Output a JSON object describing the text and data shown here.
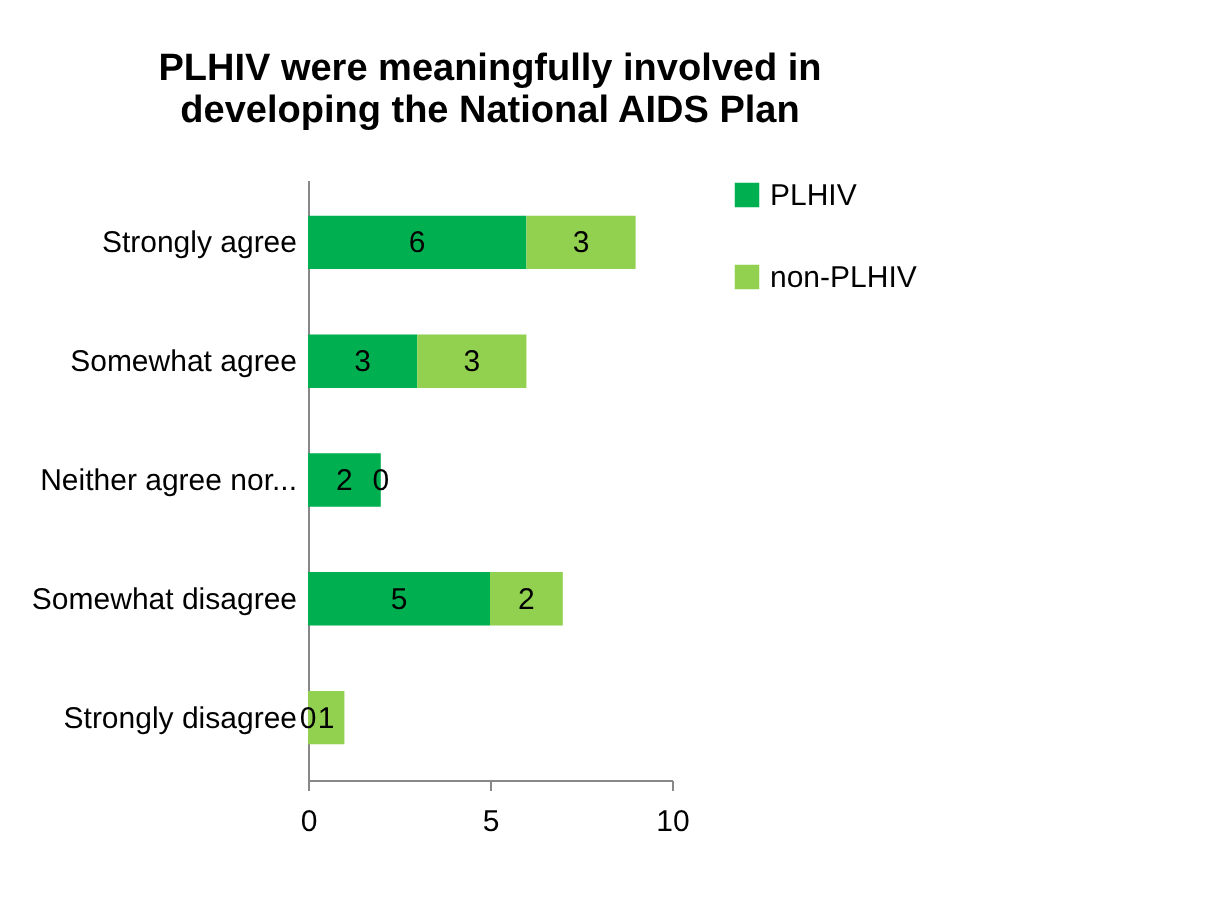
{
  "chart_data": {
    "type": "bar",
    "orientation": "horizontal",
    "stacked": true,
    "title": "PLHIV were meaningfully involved in\ndeveloping the National AIDS Plan",
    "categories": [
      "Strongly agree",
      "Somewhat agree",
      "Neither agree nor...",
      "Somewhat disagree",
      "Strongly disagree"
    ],
    "series": [
      {
        "name": "PLHIV",
        "color": "#00b050",
        "values": [
          6,
          3,
          2,
          5,
          0
        ]
      },
      {
        "name": "non-PLHIV",
        "color": "#92d050",
        "values": [
          3,
          3,
          0,
          2,
          1
        ]
      }
    ],
    "xlim": [
      0,
      10
    ],
    "xticks": [
      0,
      5,
      10
    ],
    "data_labels": true,
    "legend": "right",
    "grid": false
  }
}
